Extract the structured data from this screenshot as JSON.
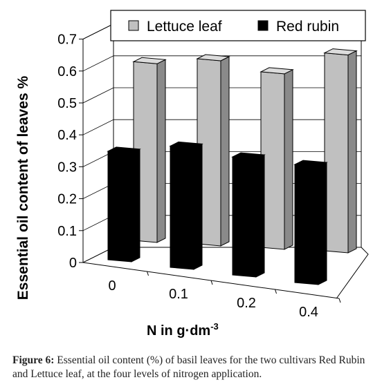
{
  "chart_data": {
    "type": "bar",
    "subtype": "3d-clustered-column",
    "categories": [
      "0",
      "0.1",
      "0.2",
      "0.4"
    ],
    "series": [
      {
        "name": "Lettuce leaf",
        "color": "#c0c0c0",
        "values": [
          0.56,
          0.58,
          0.55,
          0.62
        ]
      },
      {
        "name": "Red rubin",
        "color": "#000000",
        "values": [
          0.34,
          0.38,
          0.37,
          0.37
        ]
      }
    ],
    "xlabel_base": "N in g·dm",
    "xlabel_sup": "-3",
    "ylabel": "Essential oil content of leaves %",
    "ylim": [
      0,
      0.7
    ],
    "yticks": [
      "0",
      "0.1",
      "0.2",
      "0.3",
      "0.4",
      "0.5",
      "0.6",
      "0.7"
    ],
    "grid": true,
    "legend_position": "top"
  },
  "caption": {
    "label": "Figure 6:",
    "text": " Essential oil content (%) of basil leaves for the two cultivars Red Rubin and Lettuce leaf, at the four levels of nitrogen application."
  }
}
